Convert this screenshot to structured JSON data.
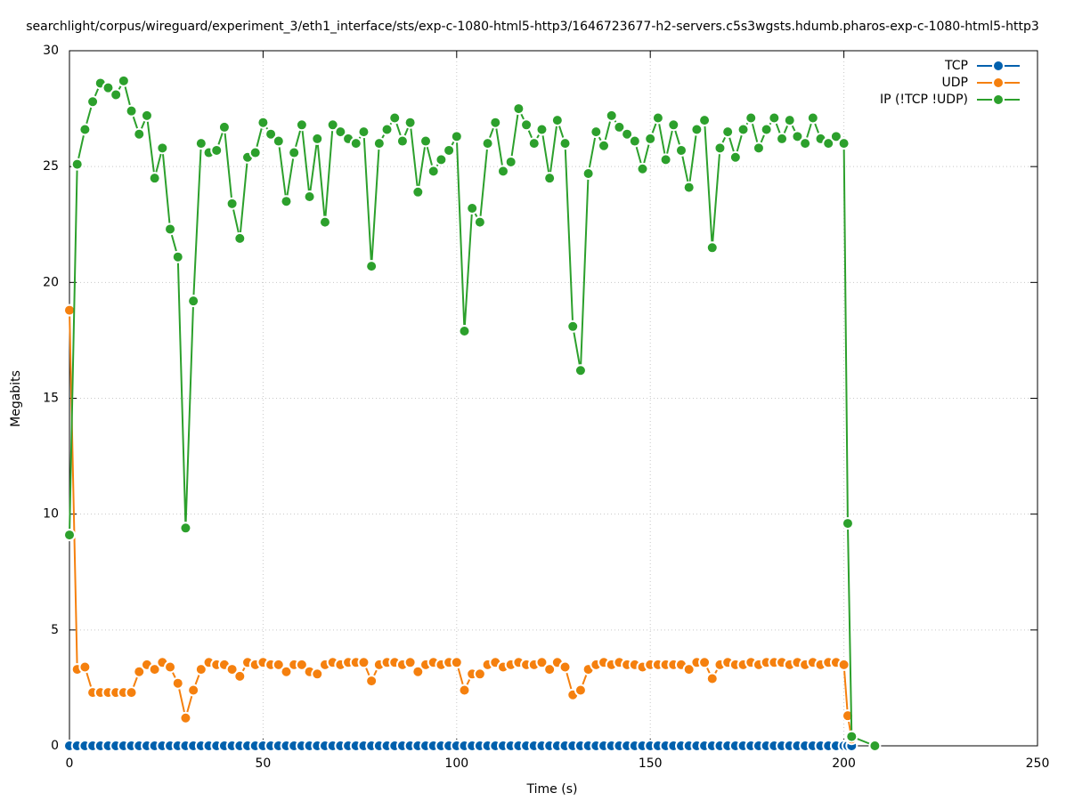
{
  "chart_data": {
    "type": "line",
    "title": "searchlight/corpus/wireguard/experiment_3/eth1_interface/sts/exp-c-1080-html5-http3/1646723677-h2-servers.c5s3wgsts.hdumb.pharos-exp-c-1080-html5-http3",
    "xlabel": "Time (s)",
    "ylabel": "Megabits",
    "x": [
      0,
      2,
      4,
      6,
      8,
      10,
      12,
      14,
      16,
      18,
      20,
      22,
      24,
      26,
      28,
      30,
      32,
      34,
      36,
      38,
      40,
      42,
      44,
      46,
      48,
      50,
      52,
      54,
      56,
      58,
      60,
      62,
      64,
      66,
      68,
      70,
      72,
      74,
      76,
      78,
      80,
      82,
      84,
      86,
      88,
      90,
      92,
      94,
      96,
      98,
      100,
      102,
      104,
      106,
      108,
      110,
      112,
      114,
      116,
      118,
      120,
      122,
      124,
      126,
      128,
      130,
      132,
      134,
      136,
      138,
      140,
      142,
      144,
      146,
      148,
      150,
      152,
      154,
      156,
      158,
      160,
      162,
      164,
      166,
      168,
      170,
      172,
      174,
      176,
      178,
      180,
      182,
      184,
      186,
      188,
      190,
      192,
      194,
      196,
      198,
      200,
      201,
      202,
      208
    ],
    "series": [
      {
        "name": "TCP",
        "color": "#0060ad",
        "values": [
          0,
          0,
          0,
          0,
          0,
          0,
          0,
          0,
          0,
          0,
          0,
          0,
          0,
          0,
          0,
          0,
          0,
          0,
          0,
          0,
          0,
          0,
          0,
          0,
          0,
          0,
          0,
          0,
          0,
          0,
          0,
          0,
          0,
          0,
          0,
          0,
          0,
          0,
          0,
          0,
          0,
          0,
          0,
          0,
          0,
          0,
          0,
          0,
          0,
          0,
          0,
          0,
          0,
          0,
          0,
          0,
          0,
          0,
          0,
          0,
          0,
          0,
          0,
          0,
          0,
          0,
          0,
          0,
          0,
          0,
          0,
          0,
          0,
          0,
          0,
          0,
          0,
          0,
          0,
          0,
          0,
          0,
          0,
          0,
          0,
          0,
          0,
          0,
          0,
          0,
          0,
          0,
          0,
          0,
          0,
          0,
          0,
          0,
          0,
          0,
          0,
          0,
          0,
          null
        ]
      },
      {
        "name": "UDP",
        "color": "#f5800e",
        "values": [
          18.8,
          3.3,
          3.4,
          2.3,
          2.3,
          2.3,
          2.3,
          2.3,
          2.3,
          3.2,
          3.5,
          3.3,
          3.6,
          3.4,
          2.7,
          1.2,
          2.4,
          3.3,
          3.6,
          3.5,
          3.5,
          3.3,
          3.0,
          3.6,
          3.5,
          3.6,
          3.5,
          3.5,
          3.2,
          3.5,
          3.5,
          3.2,
          3.1,
          3.5,
          3.6,
          3.5,
          3.6,
          3.6,
          3.6,
          2.8,
          3.5,
          3.6,
          3.6,
          3.5,
          3.6,
          3.2,
          3.5,
          3.6,
          3.5,
          3.6,
          3.6,
          2.4,
          3.1,
          3.1,
          3.5,
          3.6,
          3.4,
          3.5,
          3.6,
          3.5,
          3.5,
          3.6,
          3.3,
          3.6,
          3.4,
          2.2,
          2.4,
          3.3,
          3.5,
          3.6,
          3.5,
          3.6,
          3.5,
          3.5,
          3.4,
          3.5,
          3.5,
          3.5,
          3.5,
          3.5,
          3.3,
          3.6,
          3.6,
          2.9,
          3.5,
          3.6,
          3.5,
          3.5,
          3.6,
          3.5,
          3.6,
          3.6,
          3.6,
          3.5,
          3.6,
          3.5,
          3.6,
          3.5,
          3.6,
          3.6,
          3.5,
          1.3,
          0.3,
          null
        ]
      },
      {
        "name": "IP (!TCP  !UDP)",
        "color": "#2ca02c",
        "values": [
          9.1,
          25.1,
          26.6,
          27.8,
          28.6,
          28.4,
          28.1,
          28.7,
          27.4,
          26.4,
          27.2,
          24.5,
          25.8,
          22.3,
          21.1,
          9.4,
          19.2,
          26.0,
          25.6,
          25.7,
          26.7,
          23.4,
          21.9,
          25.4,
          25.6,
          26.9,
          26.4,
          26.1,
          23.5,
          25.6,
          26.8,
          23.7,
          26.2,
          22.6,
          26.8,
          26.5,
          26.2,
          26.0,
          26.5,
          20.7,
          26.0,
          26.6,
          27.1,
          26.1,
          26.9,
          23.9,
          26.1,
          24.8,
          25.3,
          25.7,
          26.3,
          17.9,
          23.2,
          22.6,
          26.0,
          26.9,
          24.8,
          25.2,
          27.5,
          26.8,
          26.0,
          26.6,
          24.5,
          27.0,
          26.0,
          18.1,
          16.2,
          24.7,
          26.5,
          25.9,
          27.2,
          26.7,
          26.4,
          26.1,
          24.9,
          26.2,
          27.1,
          25.3,
          26.8,
          25.7,
          24.1,
          26.6,
          27.0,
          21.5,
          25.8,
          26.5,
          25.4,
          26.6,
          27.1,
          25.8,
          26.6,
          27.1,
          26.2,
          27.0,
          26.3,
          26.0,
          27.1,
          26.2,
          26.0,
          26.3,
          26.0,
          9.6,
          0.4,
          0
        ]
      }
    ],
    "xlim": [
      0,
      250
    ],
    "xticks": [
      0,
      50,
      100,
      150,
      200,
      250
    ],
    "ylim": [
      0,
      30
    ],
    "yticks": [
      0,
      5,
      10,
      15,
      20,
      25,
      30
    ],
    "grid": true,
    "legend": "top-right"
  }
}
